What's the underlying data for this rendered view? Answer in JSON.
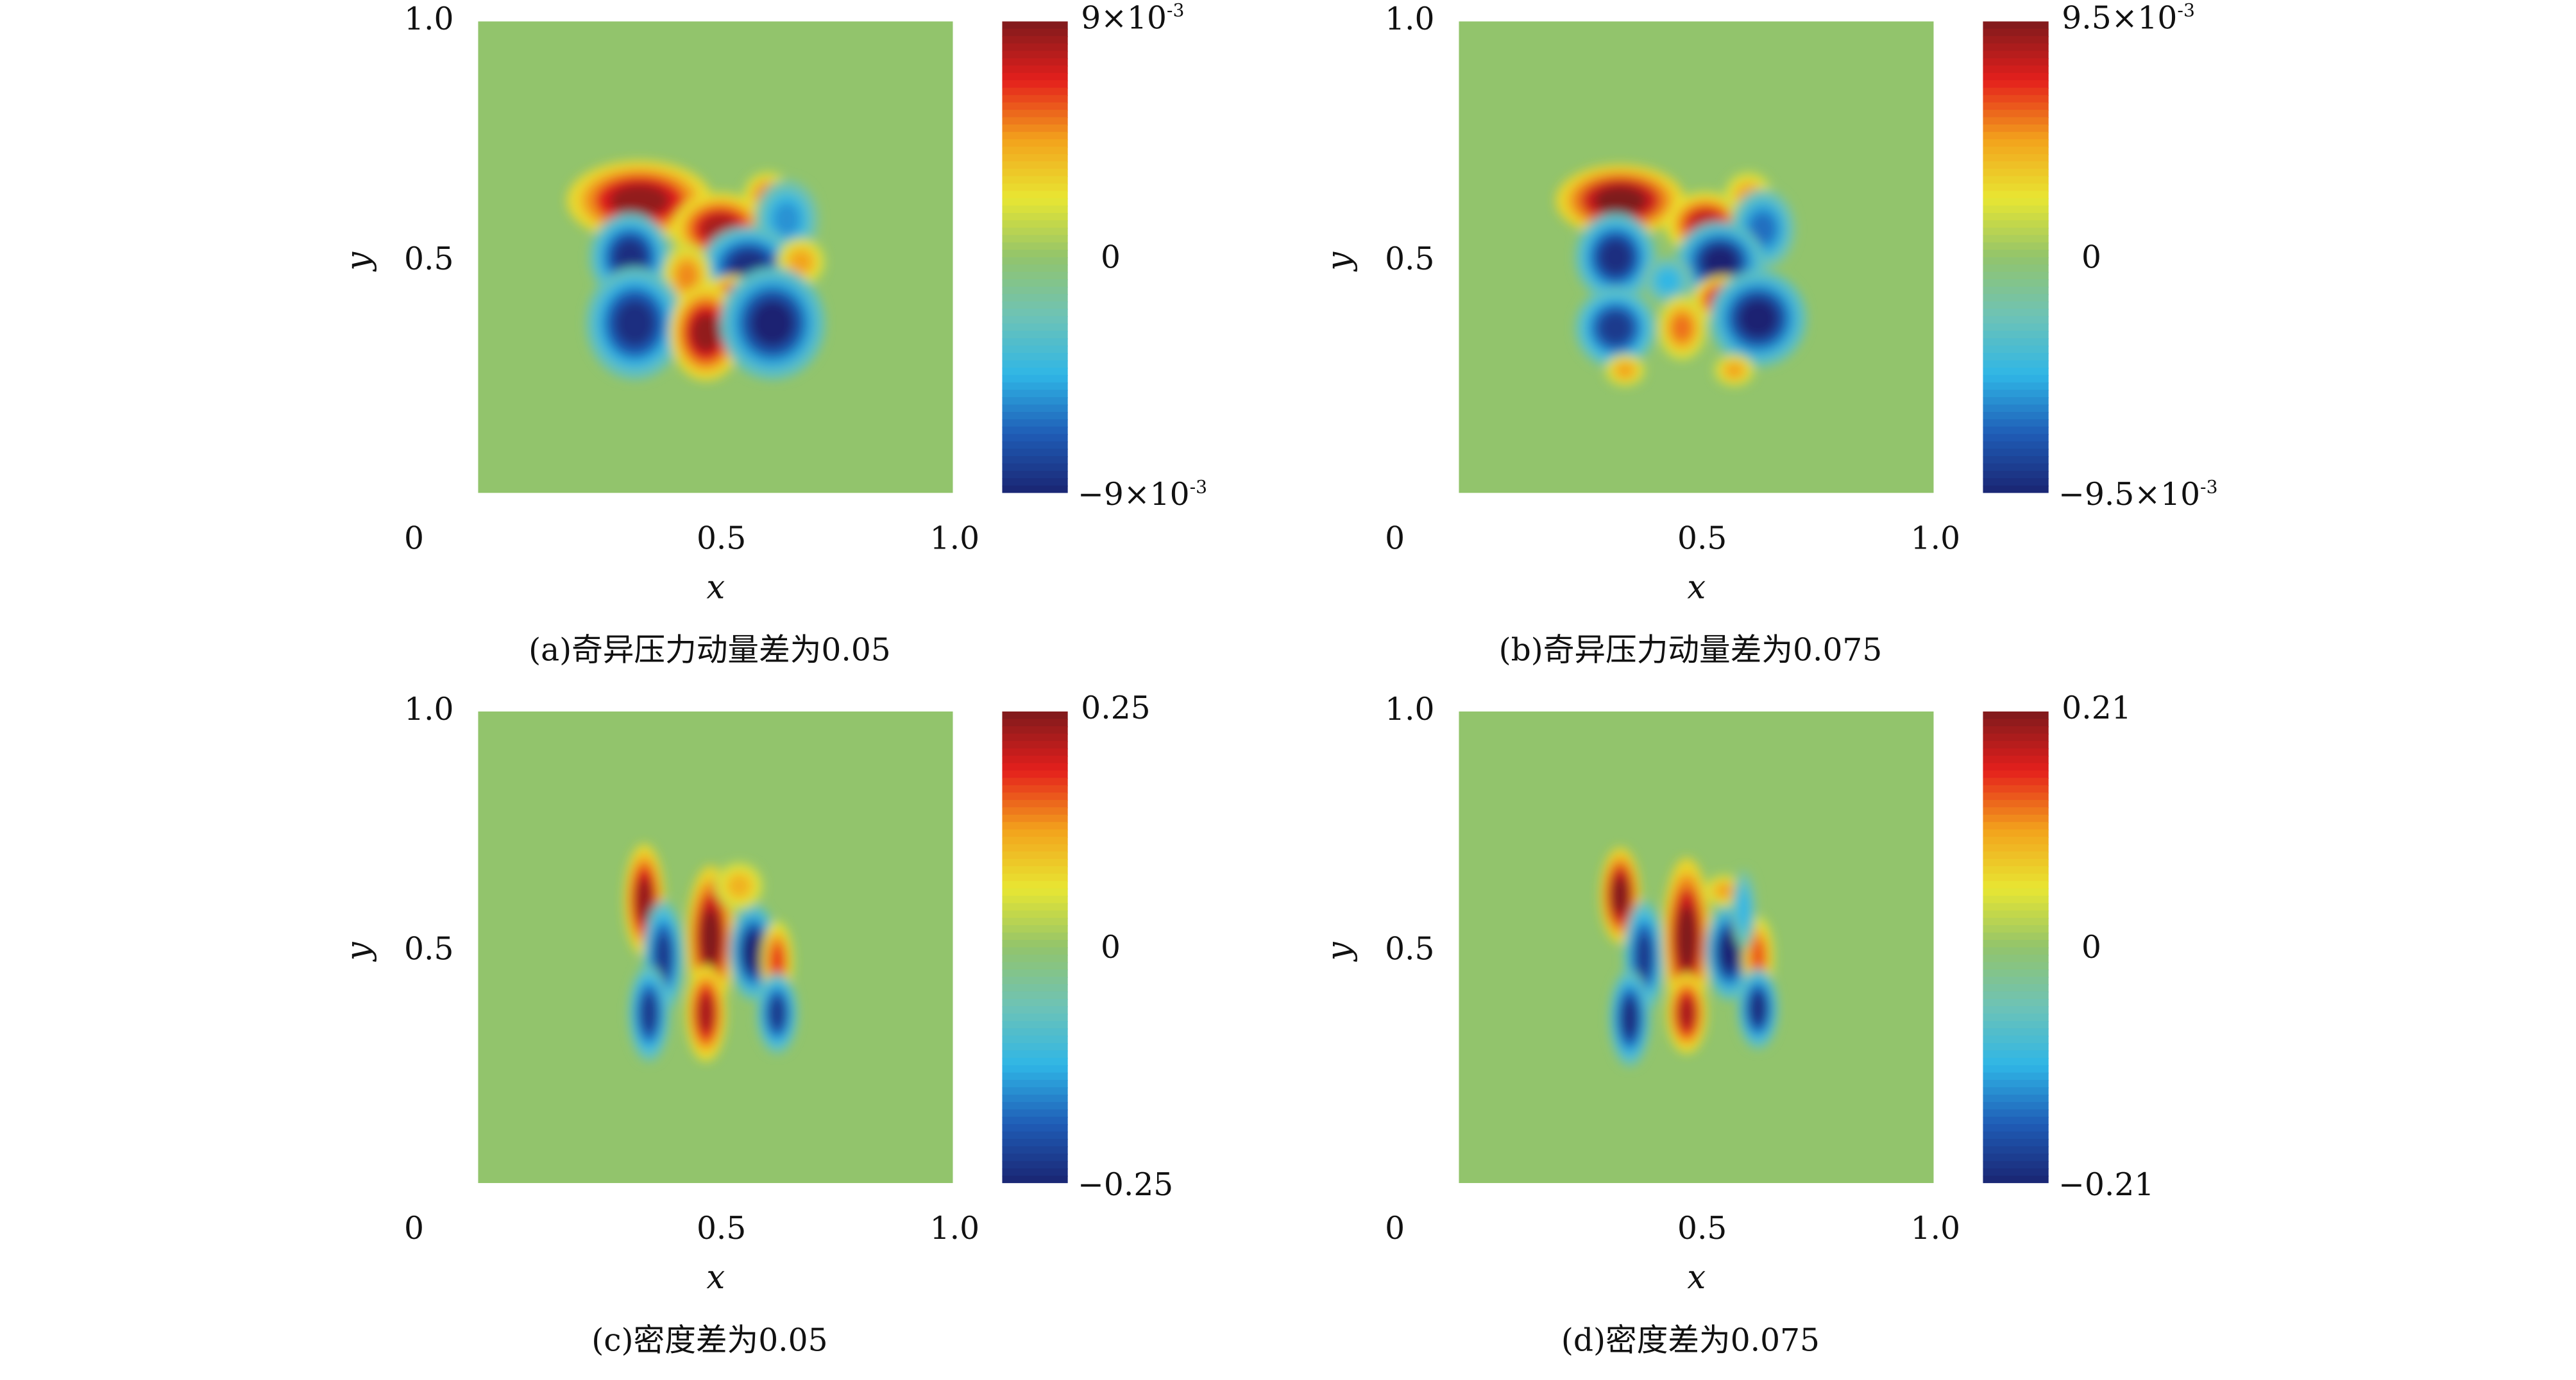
{
  "chart_data": [
    {
      "type": "heatmap",
      "caption": "(a)奇异压力动量差为0.05",
      "xlabel": "x",
      "ylabel": "y",
      "xticks": [
        "0",
        "0.5",
        "1.0"
      ],
      "yticks": [
        "1.0",
        "0.5"
      ],
      "xlim": [
        0,
        1
      ],
      "ylim": [
        0,
        1
      ],
      "colorbar": {
        "max_label": "9×10",
        "max_exp": "-3",
        "zero_label": "0",
        "min_label": "−9×10",
        "min_exp": "-3",
        "range": [
          -0.009,
          0.009
        ]
      },
      "features": [
        {
          "x": 0.34,
          "y": 0.62,
          "rx": 0.09,
          "ry": 0.05,
          "value": 0.95
        },
        {
          "x": 0.61,
          "y": 0.63,
          "rx": 0.03,
          "ry": 0.03,
          "value": 0.6
        },
        {
          "x": 0.51,
          "y": 0.56,
          "rx": 0.06,
          "ry": 0.045,
          "value": 0.9
        },
        {
          "x": 0.65,
          "y": 0.58,
          "rx": 0.04,
          "ry": 0.05,
          "value": -0.6
        },
        {
          "x": 0.32,
          "y": 0.5,
          "rx": 0.05,
          "ry": 0.055,
          "value": -0.95
        },
        {
          "x": 0.57,
          "y": 0.48,
          "rx": 0.06,
          "ry": 0.05,
          "value": -0.95
        },
        {
          "x": 0.68,
          "y": 0.49,
          "rx": 0.03,
          "ry": 0.03,
          "value": 0.5
        },
        {
          "x": 0.44,
          "y": 0.46,
          "rx": 0.03,
          "ry": 0.04,
          "value": 0.55
        },
        {
          "x": 0.54,
          "y": 0.41,
          "rx": 0.045,
          "ry": 0.03,
          "value": 0.85
        },
        {
          "x": 0.33,
          "y": 0.36,
          "rx": 0.06,
          "ry": 0.07,
          "value": -0.95
        },
        {
          "x": 0.48,
          "y": 0.34,
          "rx": 0.045,
          "ry": 0.06,
          "value": 0.95
        },
        {
          "x": 0.62,
          "y": 0.36,
          "rx": 0.065,
          "ry": 0.07,
          "value": -1.0
        }
      ]
    },
    {
      "type": "heatmap",
      "caption": "(b)奇异压力动量差为0.075",
      "xlabel": "x",
      "ylabel": "y",
      "xticks": [
        "0",
        "0.5",
        "1.0"
      ],
      "yticks": [
        "1.0",
        "0.5"
      ],
      "xlim": [
        0,
        1
      ],
      "ylim": [
        0,
        1
      ],
      "colorbar": {
        "max_label": "9.5×10",
        "max_exp": "-3",
        "zero_label": "0",
        "min_label": "−9.5×10",
        "min_exp": "-3",
        "range": [
          -0.0095,
          0.0095
        ]
      },
      "features": [
        {
          "x": 0.34,
          "y": 0.62,
          "rx": 0.08,
          "ry": 0.045,
          "value": 1.0
        },
        {
          "x": 0.52,
          "y": 0.57,
          "rx": 0.05,
          "ry": 0.04,
          "value": 0.85
        },
        {
          "x": 0.61,
          "y": 0.63,
          "rx": 0.03,
          "ry": 0.03,
          "value": 0.5
        },
        {
          "x": 0.64,
          "y": 0.56,
          "rx": 0.04,
          "ry": 0.05,
          "value": -0.7
        },
        {
          "x": 0.33,
          "y": 0.5,
          "rx": 0.05,
          "ry": 0.055,
          "value": -0.95
        },
        {
          "x": 0.55,
          "y": 0.49,
          "rx": 0.055,
          "ry": 0.05,
          "value": -1.0
        },
        {
          "x": 0.44,
          "y": 0.45,
          "rx": 0.03,
          "ry": 0.03,
          "value": -0.5
        },
        {
          "x": 0.56,
          "y": 0.41,
          "rx": 0.04,
          "ry": 0.03,
          "value": 0.9
        },
        {
          "x": 0.33,
          "y": 0.35,
          "rx": 0.05,
          "ry": 0.05,
          "value": -0.9
        },
        {
          "x": 0.47,
          "y": 0.35,
          "rx": 0.03,
          "ry": 0.04,
          "value": 0.6
        },
        {
          "x": 0.63,
          "y": 0.37,
          "rx": 0.06,
          "ry": 0.06,
          "value": -1.0
        },
        {
          "x": 0.35,
          "y": 0.26,
          "rx": 0.025,
          "ry": 0.02,
          "value": 0.5
        },
        {
          "x": 0.58,
          "y": 0.26,
          "rx": 0.025,
          "ry": 0.02,
          "value": 0.5
        }
      ]
    },
    {
      "type": "heatmap",
      "caption": "(c)密度差为0.05",
      "xlabel": "x",
      "ylabel": "y",
      "xticks": [
        "0",
        "0.5",
        "1.0"
      ],
      "yticks": [
        "1.0",
        "0.5"
      ],
      "xlim": [
        0,
        1
      ],
      "ylim": [
        0,
        1
      ],
      "colorbar": {
        "max_label": "0.25",
        "max_exp": "",
        "zero_label": "0",
        "min_label": "−0.25",
        "min_exp": "",
        "range": [
          -0.25,
          0.25
        ]
      },
      "features": [
        {
          "x": 0.35,
          "y": 0.6,
          "rx": 0.025,
          "ry": 0.07,
          "value": 0.95
        },
        {
          "x": 0.39,
          "y": 0.48,
          "rx": 0.025,
          "ry": 0.07,
          "value": -0.9
        },
        {
          "x": 0.36,
          "y": 0.36,
          "rx": 0.025,
          "ry": 0.06,
          "value": -0.9
        },
        {
          "x": 0.49,
          "y": 0.52,
          "rx": 0.03,
          "ry": 0.09,
          "value": 1.0
        },
        {
          "x": 0.48,
          "y": 0.36,
          "rx": 0.025,
          "ry": 0.06,
          "value": 0.9
        },
        {
          "x": 0.58,
          "y": 0.49,
          "rx": 0.03,
          "ry": 0.06,
          "value": -1.0
        },
        {
          "x": 0.63,
          "y": 0.47,
          "rx": 0.02,
          "ry": 0.05,
          "value": 0.7
        },
        {
          "x": 0.63,
          "y": 0.36,
          "rx": 0.025,
          "ry": 0.05,
          "value": -0.9
        },
        {
          "x": 0.55,
          "y": 0.63,
          "rx": 0.03,
          "ry": 0.03,
          "value": 0.45
        }
      ]
    },
    {
      "type": "heatmap",
      "caption": "(d)密度差为0.075",
      "xlabel": "x",
      "ylabel": "y",
      "xticks": [
        "0",
        "0.5",
        "1.0"
      ],
      "yticks": [
        "1.0",
        "0.5"
      ],
      "xlim": [
        0,
        1
      ],
      "ylim": [
        0,
        1
      ],
      "colorbar": {
        "max_label": "0.21",
        "max_exp": "",
        "zero_label": "0",
        "min_label": "−0.21",
        "min_exp": "",
        "range": [
          -0.21,
          0.21
        ]
      },
      "features": [
        {
          "x": 0.34,
          "y": 0.61,
          "rx": 0.025,
          "ry": 0.06,
          "value": 1.0
        },
        {
          "x": 0.39,
          "y": 0.48,
          "rx": 0.025,
          "ry": 0.07,
          "value": -0.9
        },
        {
          "x": 0.36,
          "y": 0.35,
          "rx": 0.025,
          "ry": 0.06,
          "value": -0.95
        },
        {
          "x": 0.48,
          "y": 0.52,
          "rx": 0.03,
          "ry": 0.1,
          "value": 1.0
        },
        {
          "x": 0.48,
          "y": 0.36,
          "rx": 0.025,
          "ry": 0.05,
          "value": 0.9
        },
        {
          "x": 0.57,
          "y": 0.49,
          "rx": 0.03,
          "ry": 0.06,
          "value": -1.0
        },
        {
          "x": 0.63,
          "y": 0.48,
          "rx": 0.02,
          "ry": 0.05,
          "value": 0.65
        },
        {
          "x": 0.63,
          "y": 0.37,
          "rx": 0.025,
          "ry": 0.05,
          "value": -0.95
        },
        {
          "x": 0.56,
          "y": 0.62,
          "rx": 0.025,
          "ry": 0.02,
          "value": 0.5
        },
        {
          "x": 0.6,
          "y": 0.58,
          "rx": 0.015,
          "ry": 0.05,
          "value": -0.5
        }
      ]
    }
  ],
  "colors": {
    "background": "#92c46c",
    "stops": [
      "#1a2472",
      "#1f5cb6",
      "#2fb6e6",
      "#6ec3b6",
      "#92c46c",
      "#e8e632",
      "#f3a21c",
      "#e41f1c",
      "#7e1a1c"
    ]
  }
}
